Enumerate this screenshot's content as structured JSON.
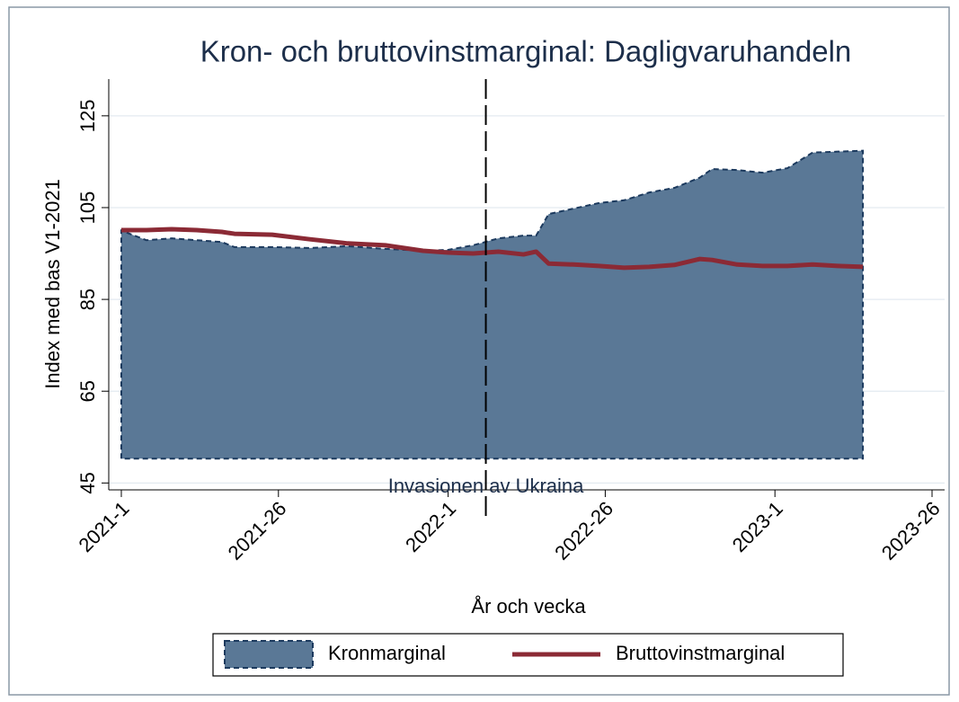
{
  "chart_data": {
    "type": "area_line",
    "title": "Kron- och bruttovinstmarginal: Dagligvaruhandeln",
    "xlabel": "År och vecka",
    "ylabel": "Index med bas V1-2021",
    "x": [
      0,
      4,
      8,
      12,
      16,
      18,
      24,
      30,
      36,
      42,
      48,
      52,
      56,
      60,
      64,
      66,
      68,
      72,
      76,
      80,
      84,
      88,
      92,
      94,
      98,
      102,
      106,
      110,
      114,
      118
    ],
    "series": [
      {
        "name": "Kronmarginal",
        "kind": "area",
        "color": "#5a7896",
        "edge_color": "#1c3a5e",
        "values": [
          100,
          97.9,
          98.3,
          97.9,
          97.5,
          96.4,
          96.4,
          96.2,
          96.6,
          96,
          95.6,
          95.8,
          96.8,
          98.3,
          98.9,
          98.9,
          103.6,
          104.8,
          106,
          106.6,
          108.3,
          109.3,
          111.5,
          113.4,
          113.2,
          112.6,
          113.6,
          117,
          117.2,
          117.4
        ]
      },
      {
        "name": "Bruttovinstmarginal",
        "kind": "line",
        "color": "#8b2a35",
        "values": [
          100.1,
          100.1,
          100.3,
          100.1,
          99.7,
          99.3,
          99.1,
          98.1,
          97.2,
          96.8,
          95.6,
          95.2,
          95,
          95.4,
          94.8,
          95.4,
          92.8,
          92.6,
          92.3,
          91.9,
          92.1,
          92.5,
          93.8,
          93.6,
          92.6,
          92.3,
          92.3,
          92.6,
          92.3,
          92.1
        ]
      }
    ],
    "area_base": 50.3,
    "vline": {
      "x": 58,
      "label": "Invasionen av Ukraina"
    },
    "xlim": [
      -2,
      131
    ],
    "xticks": [
      {
        "value": 0,
        "label": "2021-1"
      },
      {
        "value": 25,
        "label": "2021-26"
      },
      {
        "value": 52,
        "label": "2022-1"
      },
      {
        "value": 77,
        "label": "2022-26"
      },
      {
        "value": 104,
        "label": "2023-1"
      },
      {
        "value": 129,
        "label": "2023-26"
      }
    ],
    "ylim": [
      43.5,
      133
    ],
    "yticks": [
      45,
      65,
      85,
      105,
      125
    ],
    "grid": true
  }
}
